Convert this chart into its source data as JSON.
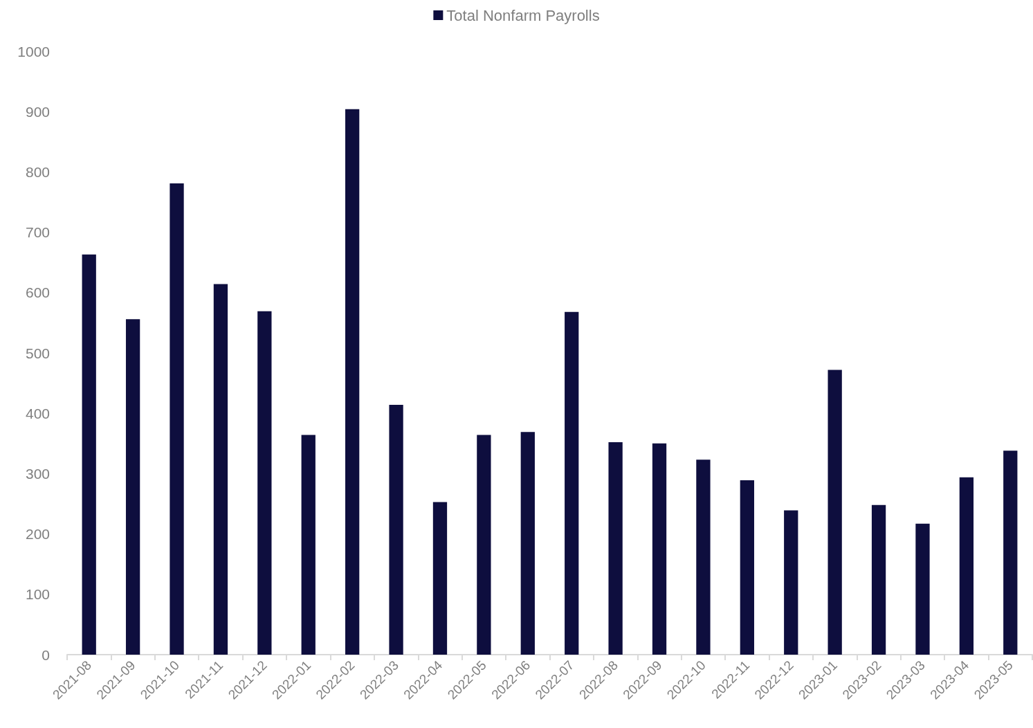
{
  "chart_data": {
    "type": "bar",
    "categories": [
      "2021-08",
      "2021-09",
      "2021-10",
      "2021-11",
      "2021-12",
      "2022-01",
      "2022-02",
      "2022-03",
      "2022-04",
      "2022-05",
      "2022-06",
      "2022-07",
      "2022-08",
      "2022-09",
      "2022-10",
      "2022-11",
      "2022-12",
      "2023-01",
      "2023-02",
      "2023-03",
      "2023-04",
      "2023-05"
    ],
    "series": [
      {
        "name": "Total Nonfarm Payrolls",
        "color": "#0e0e3e",
        "values": [
          663,
          556,
          781,
          614,
          569,
          364,
          904,
          414,
          253,
          364,
          369,
          568,
          352,
          350,
          323,
          289,
          239,
          472,
          248,
          217,
          294,
          338
        ]
      }
    ],
    "ylim": [
      0,
      1000
    ],
    "yticks": [
      0,
      100,
      200,
      300,
      400,
      500,
      600,
      700,
      800,
      900,
      1000
    ],
    "grid": false,
    "legend": "top"
  }
}
